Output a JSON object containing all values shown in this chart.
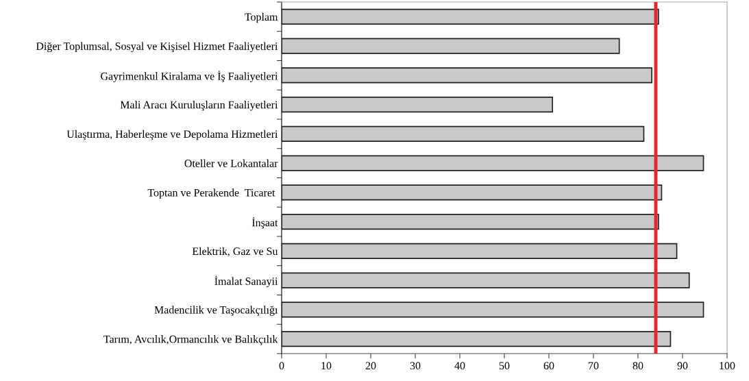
{
  "chart_data": {
    "type": "bar",
    "orientation": "horizontal",
    "categories": [
      "Toplam",
      "Diğer Toplumsal, Sosyal ve Kişisel Hizmet Faaliyetleri",
      "Gayrimenkul Kiralama ve İş Faaliyetleri",
      "Mali Aracı Kuruluşların Faaliyetleri",
      "Ulaştırma, Haberleşme ve Depolama Hizmetleri",
      "Oteller ve Lokantalar",
      "Toptan ve Perakende  Ticaret ",
      "İnşaat",
      "Elektrik, Gaz ve Su",
      "İmalat Sanayii",
      "Madencilik ve Taşocakçılığı",
      "Tarım, Avcılık,Ormancılık ve Balıkçılık"
    ],
    "values": [
      84.6,
      75.8,
      83.1,
      60.8,
      81.3,
      94.7,
      85.3,
      84.6,
      88.7,
      91.5,
      94.7,
      87.3
    ],
    "color": "#c8c9cb",
    "xlim": [
      0,
      100
    ],
    "xticks": [
      0,
      10,
      20,
      30,
      40,
      50,
      60,
      70,
      80,
      90,
      100
    ],
    "ref_lines": [
      {
        "axis": "x",
        "value": 84,
        "color": "#e8262c"
      }
    ],
    "grid": false,
    "legend": false
  }
}
